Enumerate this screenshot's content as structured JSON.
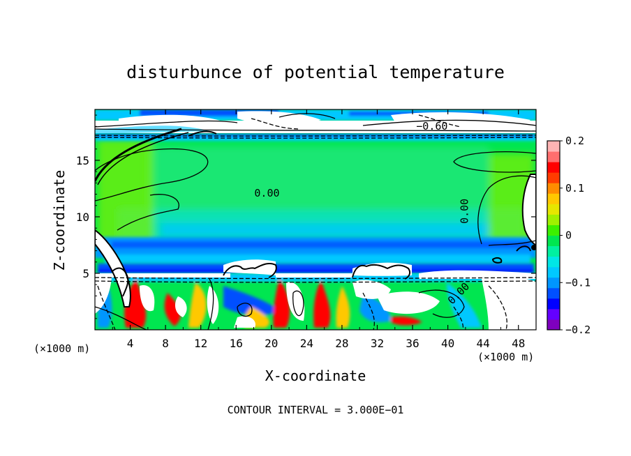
{
  "chart_data": {
    "type": "heatmap",
    "title": "disturbunce of potential temperature",
    "xlabel": "X-coordinate",
    "ylabel": "Z-coordinate",
    "x_unit": "(×1000 m)",
    "x_unit_right": "(×1000 m)",
    "xlim": [
      0,
      50
    ],
    "ylim": [
      0,
      19.5
    ],
    "x_ticks": [
      4,
      8,
      12,
      16,
      20,
      24,
      28,
      32,
      36,
      40,
      44,
      48
    ],
    "y_ticks": [
      5,
      10,
      15
    ],
    "colorbar": {
      "range": [
        -0.2,
        0.2
      ],
      "tick_values": [
        0.2,
        0.1,
        0,
        -0.1,
        -0.2
      ],
      "tick_labels": [
        "0.2",
        "0.1",
        "0",
        "−0.1",
        "−0.2"
      ],
      "colors": [
        "#7f00bf",
        "#6400ff",
        "#0000ff",
        "#0050ff",
        "#0096ff",
        "#00c8ff",
        "#00e6e6",
        "#00f0a0",
        "#00e650",
        "#3cf000",
        "#a0f000",
        "#e6e600",
        "#ffc800",
        "#ff8c00",
        "#ff3c00",
        "#ff0000",
        "#ff6e6e",
        "#ffb4b4"
      ]
    },
    "contour_labels": [
      {
        "text": "0.00",
        "x": 19.5,
        "z": 11.8
      },
      {
        "text": "0.00",
        "x": 42.3,
        "z": 10.5
      },
      {
        "text": "0.00",
        "x": 41.5,
        "z": 3.0
      },
      {
        "text": "−0.60",
        "x": 38.2,
        "z": 17.7
      }
    ],
    "footer": "CONTOUR INTERVAL = 3.000E−01",
    "grid": false,
    "legend": "colorbar-right"
  }
}
